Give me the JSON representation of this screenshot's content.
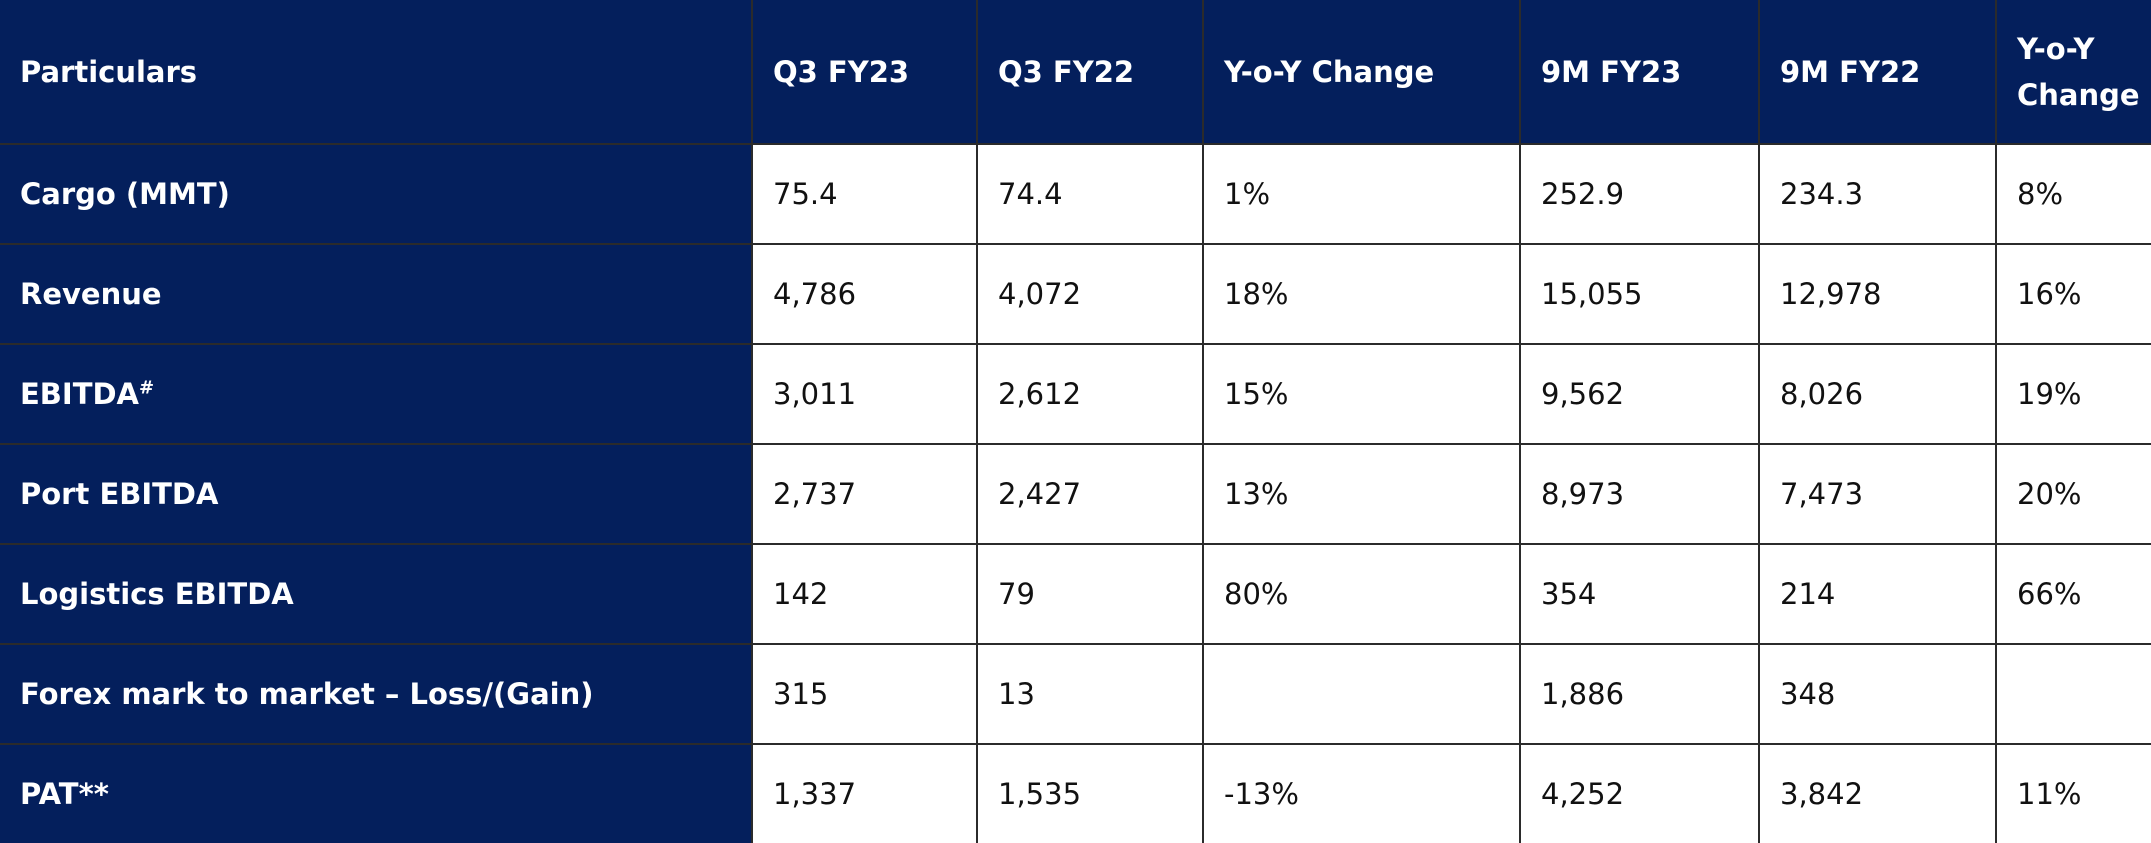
{
  "table": {
    "header": [
      "Particulars",
      "Q3 FY23",
      "Q3 FY22",
      "Y-o-Y Change",
      "9M FY23",
      "9M FY22",
      "Y-o-Y Change"
    ],
    "rows": [
      {
        "label": "Cargo (MMT)",
        "cells": [
          "75.4",
          "74.4",
          "1%",
          "252.9",
          "234.3",
          "8%"
        ]
      },
      {
        "label": "Revenue",
        "cells": [
          "4,786",
          "4,072",
          "18%",
          "15,055",
          "12,978",
          "16%"
        ]
      },
      {
        "label": "EBITDA",
        "sup": "#",
        "cells": [
          "3,011",
          "2,612",
          "15%",
          "9,562",
          "8,026",
          "19%"
        ]
      },
      {
        "label": "Port EBITDA",
        "cells": [
          "2,737",
          "2,427",
          "13%",
          "8,973",
          "7,473",
          "20%"
        ]
      },
      {
        "label": "Logistics EBITDA",
        "cells": [
          "142",
          "79",
          "80%",
          "354",
          "214",
          "66%"
        ]
      },
      {
        "label": "Forex mark to market – Loss/(Gain)",
        "cells": [
          "315",
          "13",
          null,
          "1,886",
          "348",
          null
        ]
      },
      {
        "label": "PAT**",
        "cells": [
          "1,337",
          "1,535",
          "-13%",
          "4,252",
          "3,842",
          "11%"
        ]
      }
    ]
  }
}
